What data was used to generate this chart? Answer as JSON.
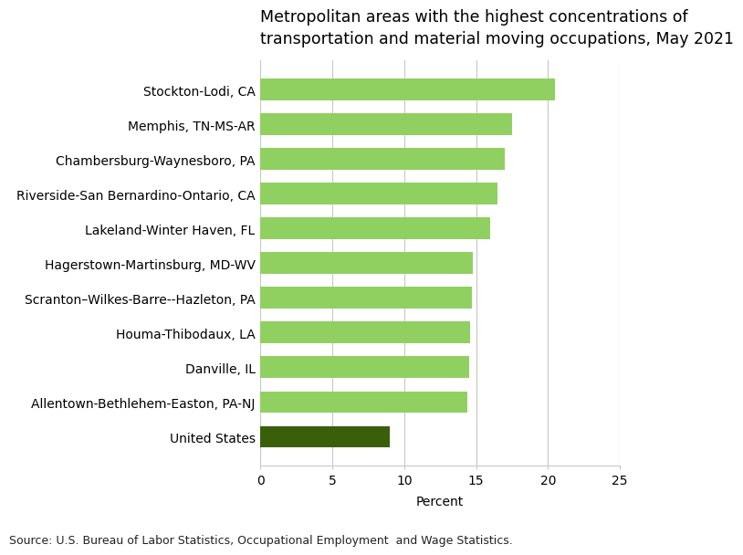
{
  "title": "Metropolitan areas with the highest concentrations of\ntransportation and material moving occupations, May 2021",
  "categories": [
    "United States",
    "Allentown-Bethlehem-Easton, PA-NJ",
    "Danville, IL",
    "Houma-Thibodaux, LA",
    "Scranton–Wilkes-Barre--Hazleton, PA",
    "Hagerstown-Martinsburg, MD-WV",
    "Lakeland-Winter Haven, FL",
    "Riverside-San Bernardino-Ontario, CA",
    "Chambersburg-Waynesboro, PA",
    "Memphis, TN-MS-AR",
    "Stockton-Lodi, CA"
  ],
  "values": [
    9.0,
    14.4,
    14.5,
    14.6,
    14.7,
    14.8,
    16.0,
    16.5,
    17.0,
    17.5,
    20.5
  ],
  "bar_colors": [
    "#3a5f0b",
    "#90d060",
    "#90d060",
    "#90d060",
    "#90d060",
    "#90d060",
    "#90d060",
    "#90d060",
    "#90d060",
    "#90d060",
    "#90d060"
  ],
  "xlabel": "Percent",
  "xlim": [
    0,
    25
  ],
  "xticks": [
    0,
    5,
    10,
    15,
    20,
    25
  ],
  "source": "Source: U.S. Bureau of Labor Statistics, Occupational Employment  and Wage Statistics.",
  "background_color": "#ffffff",
  "grid_color": "#c8c8c8",
  "title_fontsize": 12.5,
  "label_fontsize": 10,
  "tick_fontsize": 10,
  "source_fontsize": 9,
  "bar_height": 0.62
}
